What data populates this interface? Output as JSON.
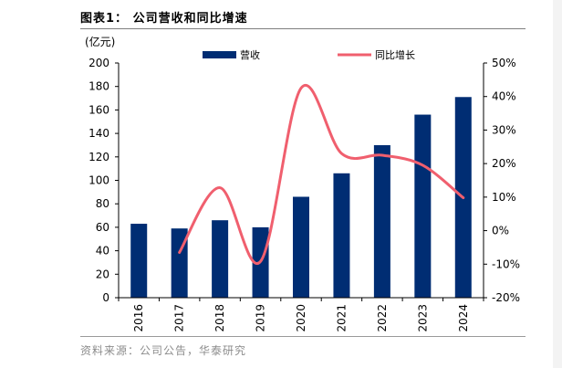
{
  "figure": {
    "title": "图表1：  公司营收和同比增速",
    "unit": "(亿元)",
    "source": "资料来源：公司公告，华泰研究"
  },
  "colors": {
    "bar": "#002d73",
    "line": "#f05f6e"
  },
  "chart_data": {
    "type": "bar",
    "categories": [
      "2016",
      "2017",
      "2018",
      "2019",
      "2020",
      "2021",
      "2022",
      "2023",
      "2024"
    ],
    "series": [
      {
        "name": "营收",
        "type": "bar",
        "axis": "left",
        "values": [
          63,
          59,
          66,
          60,
          86,
          106,
          130,
          156,
          171
        ]
      },
      {
        "name": "同比增长",
        "type": "line",
        "axis": "right",
        "smooth": true,
        "values": [
          null,
          -6.5,
          12.8,
          -9.2,
          42.5,
          23.0,
          22.5,
          19.5,
          9.8
        ]
      }
    ],
    "left_axis": {
      "min": 0,
      "max": 200,
      "step": 20,
      "ticks": [
        "0",
        "20",
        "40",
        "60",
        "80",
        "100",
        "120",
        "140",
        "160",
        "180",
        "200"
      ]
    },
    "right_axis": {
      "min": -20,
      "max": 50,
      "step": 10,
      "ticks": [
        "-20%",
        "-10%",
        "0%",
        "10%",
        "20%",
        "30%",
        "40%",
        "50%"
      ]
    },
    "legend_position": "top",
    "grid": false
  }
}
